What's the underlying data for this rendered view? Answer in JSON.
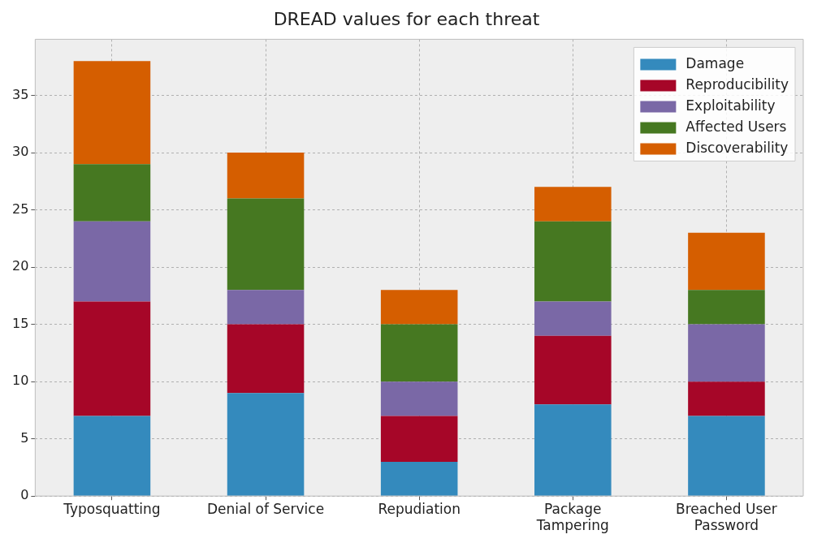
{
  "chart_data": {
    "type": "bar",
    "title": "DREAD values for each threat",
    "stacked": true,
    "categories": [
      "Typosquatting",
      "Denial of Service",
      "Repudiation",
      "Package\nTampering",
      "Breached User\nPassword"
    ],
    "series": [
      {
        "name": "Damage",
        "color": "#348abd",
        "values": [
          7,
          9,
          3,
          8,
          7
        ]
      },
      {
        "name": "Reproducibility",
        "color": "#a60628",
        "values": [
          10,
          6,
          4,
          6,
          3
        ]
      },
      {
        "name": "Exploitability",
        "color": "#7a68a6",
        "values": [
          7,
          3,
          3,
          3,
          5
        ]
      },
      {
        "name": "Affected Users",
        "color": "#467821",
        "values": [
          5,
          8,
          5,
          7,
          3
        ]
      },
      {
        "name": "Discoverability",
        "color": "#d55e00",
        "values": [
          9,
          4,
          3,
          3,
          5
        ]
      }
    ],
    "ylim": [
      0,
      39.9
    ],
    "yticks": [
      0,
      5,
      10,
      15,
      20,
      25,
      30,
      35
    ],
    "grid": true,
    "legend": "top right"
  }
}
